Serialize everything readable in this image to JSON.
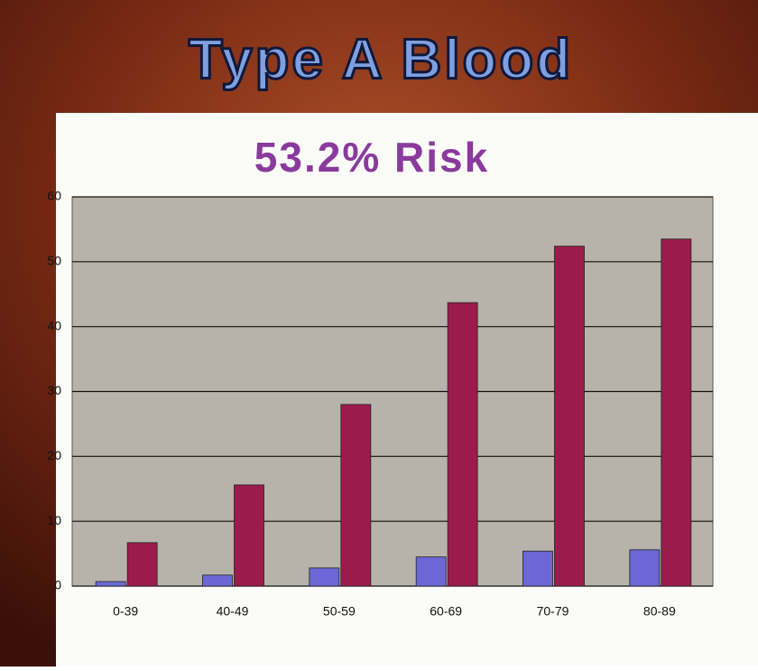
{
  "chart_data": {
    "type": "bar",
    "title": "Type A Blood",
    "subtitle": "53.2% Risk",
    "categories": [
      "0-39",
      "40-49",
      "50-59",
      "60-69",
      "70-79",
      "80-89"
    ],
    "series": [
      {
        "color": "#6b67d6",
        "values": [
          0.7,
          1.7,
          2.8,
          4.5,
          5.4,
          5.6
        ]
      },
      {
        "color": "#9b1c4c",
        "values": [
          6.7,
          15.6,
          28.0,
          43.7,
          52.4,
          53.5
        ]
      }
    ],
    "ylim": [
      0,
      60
    ],
    "yticks": [
      0,
      10,
      20,
      30,
      40,
      50,
      60
    ],
    "grid": true
  }
}
